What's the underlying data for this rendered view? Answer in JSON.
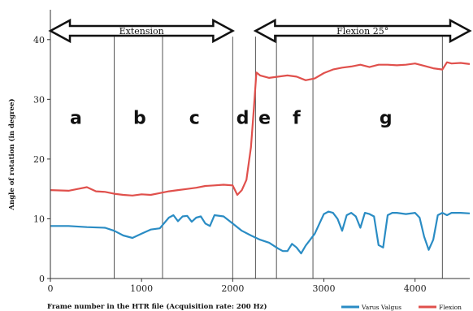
{
  "chart_data": {
    "type": "line",
    "xlabel": "Frame number in the HTR file (Acquisition rate: 200 Hz)",
    "ylabel": "Angle of rotation (in degree)",
    "xlim": [
      0,
      4600
    ],
    "ylim": [
      0,
      45
    ],
    "x_ticks": [
      "0",
      "1000",
      "2000",
      "3000",
      "4000"
    ],
    "y_ticks": [
      "0",
      "10",
      "20",
      "30",
      "40"
    ],
    "phase_boundaries": [
      700,
      1230,
      2000,
      2250,
      2480,
      2880,
      4300
    ],
    "phases": [
      {
        "label": "a",
        "x": 280
      },
      {
        "label": "b",
        "x": 980
      },
      {
        "label": "c",
        "x": 1580
      },
      {
        "label": "d",
        "x": 2110
      },
      {
        "label": "e",
        "x": 2350
      },
      {
        "label": "f",
        "x": 2700
      },
      {
        "label": "g",
        "x": 3680
      }
    ],
    "arrows": [
      {
        "label": "Extension",
        "x_start": 0,
        "x_end": 2000
      },
      {
        "label": "Flexion 25°",
        "x_start": 2250,
        "x_end": 4600
      }
    ],
    "series": [
      {
        "name": "Flexion",
        "color": "#e0504c",
        "x": [
          0,
          200,
          300,
          400,
          500,
          600,
          700,
          800,
          900,
          1000,
          1100,
          1200,
          1300,
          1400,
          1500,
          1600,
          1700,
          1800,
          1900,
          2000,
          2050,
          2100,
          2150,
          2200,
          2230,
          2260,
          2300,
          2400,
          2500,
          2600,
          2700,
          2800,
          2900,
          3000,
          3100,
          3200,
          3300,
          3400,
          3500,
          3600,
          3700,
          3800,
          3900,
          4000,
          4100,
          4200,
          4300,
          4350,
          4400,
          4500,
          4600
        ],
        "values": [
          14.8,
          14.7,
          15.0,
          15.3,
          14.6,
          14.5,
          14.2,
          14.0,
          13.9,
          14.1,
          14.0,
          14.3,
          14.6,
          14.8,
          15.0,
          15.2,
          15.5,
          15.6,
          15.7,
          15.6,
          14.0,
          14.8,
          16.5,
          22.0,
          28.0,
          34.5,
          34.0,
          33.6,
          33.8,
          34.0,
          33.8,
          33.2,
          33.5,
          34.4,
          35.0,
          35.3,
          35.5,
          35.8,
          35.4,
          35.8,
          35.8,
          35.7,
          35.8,
          36.0,
          35.6,
          35.2,
          35.0,
          36.2,
          36.0,
          36.1,
          35.9
        ]
      },
      {
        "name": "Varus Valgus",
        "color": "#2a8cc4",
        "x": [
          0,
          200,
          400,
          600,
          700,
          800,
          900,
          1000,
          1100,
          1200,
          1300,
          1350,
          1400,
          1450,
          1500,
          1550,
          1600,
          1650,
          1700,
          1750,
          1800,
          1900,
          2000,
          2100,
          2200,
          2300,
          2400,
          2500,
          2550,
          2600,
          2650,
          2700,
          2750,
          2800,
          2900,
          3000,
          3050,
          3100,
          3150,
          3200,
          3250,
          3300,
          3350,
          3400,
          3450,
          3500,
          3550,
          3600,
          3650,
          3700,
          3750,
          3800,
          3900,
          4000,
          4050,
          4100,
          4150,
          4200,
          4250,
          4300,
          4350,
          4400,
          4500,
          4600
        ],
        "values": [
          8.8,
          8.8,
          8.6,
          8.5,
          8.0,
          7.2,
          6.8,
          7.5,
          8.2,
          8.4,
          10.2,
          10.6,
          9.6,
          10.4,
          10.5,
          9.5,
          10.2,
          10.4,
          9.2,
          8.8,
          10.6,
          10.4,
          9.2,
          8.0,
          7.2,
          6.5,
          6.0,
          5.0,
          4.6,
          4.6,
          5.8,
          5.2,
          4.2,
          5.5,
          7.5,
          10.8,
          11.2,
          11.0,
          10.0,
          8.0,
          10.6,
          11.0,
          10.4,
          8.5,
          11.0,
          10.8,
          10.4,
          5.6,
          5.2,
          10.6,
          11.0,
          11.0,
          10.8,
          11.0,
          10.2,
          7.0,
          4.8,
          6.5,
          10.6,
          11.0,
          10.6,
          11.0,
          11.0,
          10.9
        ]
      }
    ]
  }
}
